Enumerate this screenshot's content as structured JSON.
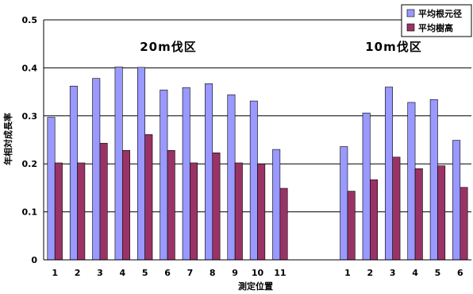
{
  "chart_data": {
    "type": "bar",
    "ylabel": "年相対成長率",
    "xlabel": "測定位置",
    "ylim": [
      0,
      0.5
    ],
    "yticks": [
      "0",
      "0.1",
      "0.2",
      "0.3",
      "0.4",
      "0.5"
    ],
    "grid": true,
    "legend_placement": "top-right",
    "groups": [
      {
        "label": "20m伐区",
        "categories": [
          "1",
          "2",
          "3",
          "4",
          "5",
          "6",
          "7",
          "8",
          "9",
          "10",
          "11"
        ]
      },
      {
        "label": "10m伐区",
        "categories": [
          "1",
          "2",
          "3",
          "4",
          "5",
          "6"
        ]
      }
    ],
    "series": [
      {
        "name": "平均根元径",
        "color": "#9999ff",
        "values": [
          0.297,
          0.362,
          0.378,
          0.402,
          0.401,
          0.354,
          0.359,
          0.367,
          0.344,
          0.331,
          0.23,
          0.236,
          0.306,
          0.36,
          0.328,
          0.334,
          0.249
        ]
      },
      {
        "name": "平均樹高",
        "color": "#993366",
        "values": [
          0.202,
          0.202,
          0.243,
          0.228,
          0.261,
          0.228,
          0.202,
          0.223,
          0.202,
          0.2,
          0.149,
          0.143,
          0.167,
          0.214,
          0.19,
          0.196,
          0.151
        ]
      }
    ]
  }
}
